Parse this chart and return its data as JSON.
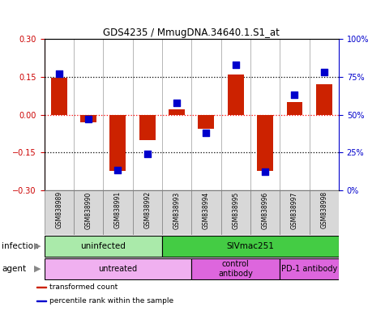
{
  "title": "GDS4235 / MmugDNA.34640.1.S1_at",
  "samples": [
    "GSM838989",
    "GSM838990",
    "GSM838991",
    "GSM838992",
    "GSM838993",
    "GSM838994",
    "GSM838995",
    "GSM838996",
    "GSM838997",
    "GSM838998"
  ],
  "transformed_count": [
    0.145,
    -0.03,
    -0.225,
    -0.1,
    0.02,
    -0.055,
    0.16,
    -0.225,
    0.05,
    0.12
  ],
  "percentile_rank": [
    77,
    47,
    13,
    24,
    58,
    38,
    83,
    12,
    63,
    78
  ],
  "ylim_left": [
    -0.3,
    0.3
  ],
  "ylim_right": [
    0,
    100
  ],
  "yticks_left": [
    -0.3,
    -0.15,
    0,
    0.15,
    0.3
  ],
  "yticks_right": [
    0,
    25,
    50,
    75,
    100
  ],
  "ytick_labels_right": [
    "0%",
    "25%",
    "50%",
    "75%",
    "100%"
  ],
  "hlines": [
    -0.15,
    0,
    0.15
  ],
  "hline_colors": [
    "black",
    "red",
    "black"
  ],
  "hline_styles": [
    "dotted",
    "dotted",
    "dotted"
  ],
  "bar_color": "#cc2200",
  "scatter_color": "#0000cc",
  "infection_groups": [
    {
      "label": "uninfected",
      "start": 0,
      "end": 4,
      "color": "#aaeaaa"
    },
    {
      "label": "SIVmac251",
      "start": 4,
      "end": 10,
      "color": "#44cc44"
    }
  ],
  "agent_groups": [
    {
      "label": "untreated",
      "start": 0,
      "end": 5,
      "color": "#f0b0f0"
    },
    {
      "label": "control\nantibody",
      "start": 5,
      "end": 8,
      "color": "#dd66dd"
    },
    {
      "label": "PD-1 antibody",
      "start": 8,
      "end": 10,
      "color": "#dd66dd"
    }
  ],
  "legend_items": [
    {
      "label": "transformed count",
      "color": "#cc2200"
    },
    {
      "label": "percentile rank within the sample",
      "color": "#0000cc"
    }
  ],
  "infection_label": "infection",
  "agent_label": "agent",
  "bar_width": 0.55,
  "scatter_size": 28,
  "left_axis_color": "#cc0000",
  "right_axis_color": "#0000cc"
}
